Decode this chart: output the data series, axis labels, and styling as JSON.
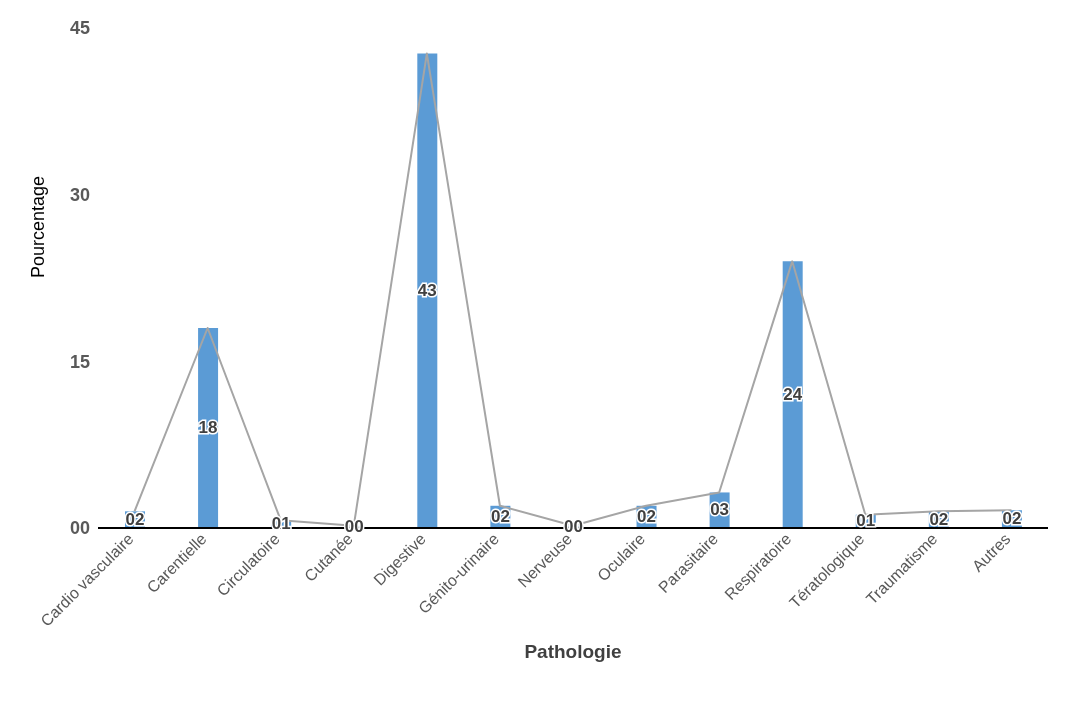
{
  "chart_data": {
    "type": "bar",
    "xlabel": "Pathologie",
    "ylabel": "Pourcentage",
    "categories": [
      "Cardio vasculaire",
      "Carentielle",
      "Circulatoire",
      "Cutanée",
      "Digestive",
      "Génito-urinaire",
      "Nerveuse",
      "Oculaire",
      "Parasitaire",
      "Respiratoire",
      "Tératologique",
      "Traumatisme",
      "Autres"
    ],
    "series": [
      {
        "color": "#5b9bd5",
        "values": [
          1.5,
          18,
          0.7,
          0.2,
          42.7,
          2,
          0.2,
          2,
          3.2,
          24,
          1.2,
          1.5,
          1.6
        ],
        "value_labels": [
          "02",
          "18",
          "01",
          "00",
          "43",
          "02",
          "00",
          "02",
          "03",
          "24",
          "01",
          "02",
          "02"
        ]
      },
      {
        "type": "line",
        "color": "#a5a5a5",
        "values": [
          1.5,
          18,
          0.7,
          0.2,
          42.7,
          2,
          0.2,
          2,
          3.2,
          24,
          1.2,
          1.5,
          1.6
        ]
      }
    ],
    "ylim": [
      0,
      45
    ],
    "yticks": [
      {
        "value": 0,
        "label": "00"
      },
      15,
      30,
      45
    ],
    "marker": "none",
    "line_style": "solid"
  }
}
